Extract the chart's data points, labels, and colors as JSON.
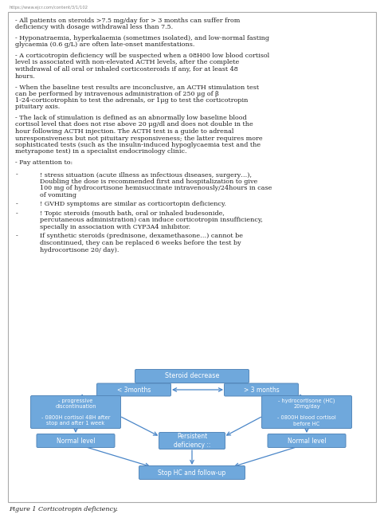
{
  "title": "Figure 1 Corticotropin deficiency.",
  "background_color": "#ffffff",
  "box_fill": "#6fa8dc",
  "box_edge": "#5588bb",
  "box_text_color": "#ffffff",
  "text_color": "#222222",
  "arrow_color": "#4a86c8",
  "url": "https://www.ejcr.com/content/3/1/102",
  "main_paragraphs": [
    "- All patients on steroids >7.5 mg/day for > 3 months can suffer from deficiency with dosage withdrawal less than 7.5.",
    "- Hyponatraemia, hyperkalaemia (sometimes isolated), and low-normal fasting glycaemia (0.6 g/L) are often late-onset manifestations.",
    "- A corticotropin deficiency will be suspected when a 08H00 low blood cortisol level is associated with non-elevated ACTH levels, after the complete withdrawal of all oral or inhaled corticosteroids if any, for at least 48 hours.",
    "- When the baseline test results are inconclusive, an ACTH stimulation test can be performed by intravenous administration of 250 μg of β 1-24-corticotrophin to test the adrenals, or 1μg to test the corticotropin pituitary axis.",
    "- The lack of stimulation is defined as an abnormally low baseline blood cortisol level that does not rise above 20 μg/dl and does not double in the hour following ACTH injection. The ACTH test is a guide to adrenal unresponsiveness but not pituitary responsiveness; the latter requires more sophisticated tests (such as the insulin-induced hypoglycaemia test and the metyrapone test) in a specialist endocrinology clinic.",
    "- Pay attention to:"
  ],
  "bullets": [
    [
      "-",
      "! stress situation (acute illness as infectious diseases, surgery…), Doubling the dose is recommended first and hospitalization to give 100 mg of hydrocortisone hemisuccinate intravenously/24hours in case of vomiting"
    ],
    [
      "-",
      "! GVHD symptoms are similar as corticortopin deficiency."
    ],
    [
      "-",
      "! Topic steroids (mouth bath, oral or inhaled budesonide, percutaneous administration) can induce corticotropin insufficiency, specially in association with CYP3A4 inhibitor."
    ],
    [
      "-",
      "If synthetic steroids (prednisone, dexamethasone…) cannot be discontinued, they can be replaced 6 weeks before the test by hydrocortisone 20/ day)."
    ]
  ],
  "flowchart": {
    "steroid_decrease": "Steroid decrease",
    "less_3months": "< 3months",
    "more_3months": "> 3 months",
    "left_box": "- progressive\ndiscontinuation\n\n- 0800H cortisol 48H after\nstop and after 1 week",
    "right_box": "- hydrocortisone (HC)\n20mg/day\n\n- 0800H blood cortisol\nbefore HC",
    "normal_left": "Normal level",
    "persistent": "Persistent\ndeficiency ::",
    "normal_right": "Normal level",
    "stop_hc": "Stop HC and follow-up"
  }
}
